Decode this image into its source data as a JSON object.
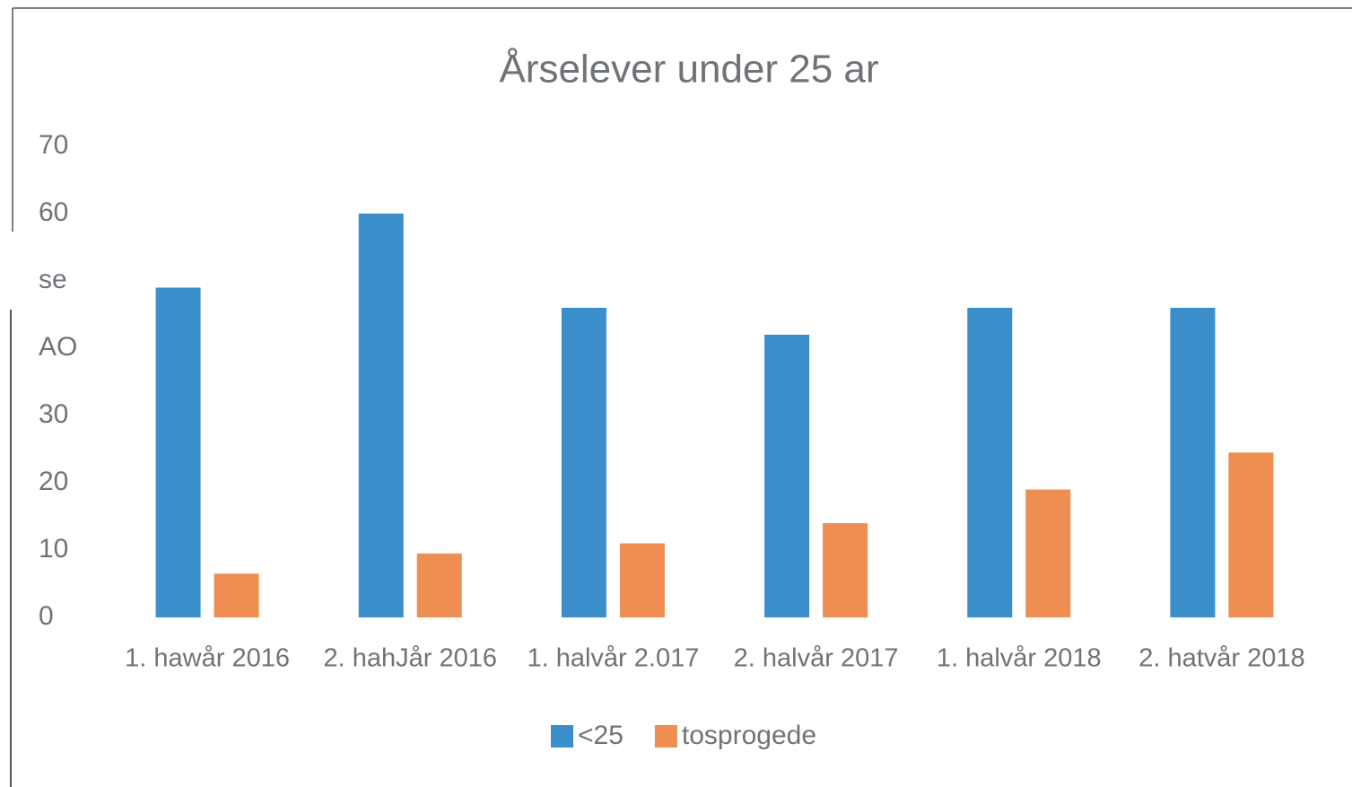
{
  "chart_data": {
    "type": "bar",
    "title": "Årselever under 25 ar",
    "categories": [
      "1. hawår 2016",
      "2. hahJår 2016",
      "1. halvår 2.017",
      "2. halvår 2017",
      "1. halvår 2018",
      "2. hatvår 2018"
    ],
    "series": [
      {
        "name": "<25",
        "color": "#3a8fcb",
        "values": [
          49,
          60,
          46,
          42,
          46,
          46
        ]
      },
      {
        "name": "tosprogede",
        "color": "#ee8e50",
        "values": [
          6.5,
          9.5,
          11,
          14,
          19,
          24.5
        ]
      }
    ],
    "ylim": [
      0,
      70
    ],
    "yticks": [
      0,
      10,
      20,
      30,
      {
        "value": 40,
        "label": "AO"
      },
      {
        "value": 50,
        "label": "se"
      },
      60,
      70
    ],
    "grid": false,
    "legend": "bottom"
  }
}
